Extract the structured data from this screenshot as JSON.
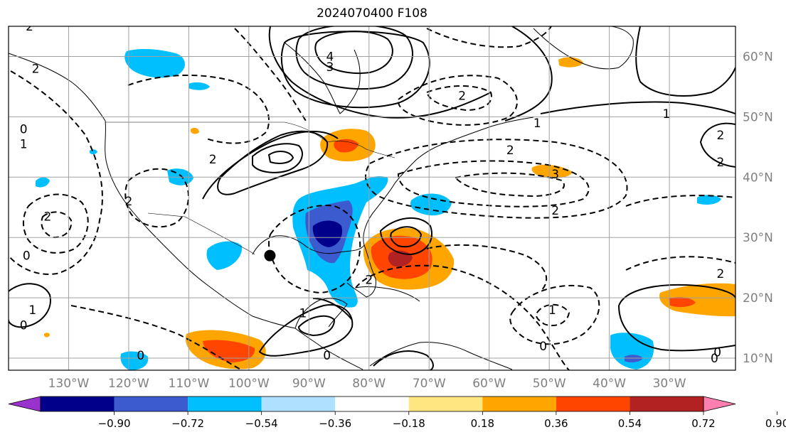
{
  "title": "2024070400 F108",
  "map": {
    "lon_range": [
      -140,
      -19
    ],
    "lat_range": [
      8,
      65
    ],
    "lon_ticks": [
      {
        "value": -130,
        "label": "130°W"
      },
      {
        "value": -120,
        "label": "120°W"
      },
      {
        "value": -110,
        "label": "110°W"
      },
      {
        "value": -100,
        "label": "100°W"
      },
      {
        "value": -90,
        "label": "90°W"
      },
      {
        "value": -80,
        "label": "80°W"
      },
      {
        "value": -70,
        "label": "70°W"
      },
      {
        "value": -60,
        "label": "60°W"
      },
      {
        "value": -50,
        "label": "50°W"
      },
      {
        "value": -40,
        "label": "40°W"
      },
      {
        "value": -30,
        "label": "30°W"
      }
    ],
    "lat_ticks": [
      {
        "value": 10,
        "label": "10°N"
      },
      {
        "value": 20,
        "label": "20°N"
      },
      {
        "value": 30,
        "label": "30°N"
      },
      {
        "value": 40,
        "label": "40°N"
      },
      {
        "value": 50,
        "label": "50°N"
      },
      {
        "value": 60,
        "label": "60°N"
      }
    ],
    "gridlines": true,
    "marker": {
      "lon": -96.5,
      "lat": 27,
      "color": "#000000"
    }
  },
  "contour_labels": [
    {
      "lon": -86.5,
      "lat": 60,
      "text": "4"
    },
    {
      "lon": -86.5,
      "lat": 58.3,
      "text": "3"
    },
    {
      "lon": -64.5,
      "lat": 53.5,
      "text": "2"
    },
    {
      "lon": -52,
      "lat": 49,
      "text": "1"
    },
    {
      "lon": -30.5,
      "lat": 50.5,
      "text": "1"
    },
    {
      "lon": -21.5,
      "lat": 47,
      "text": "2"
    },
    {
      "lon": -21.5,
      "lat": 42.5,
      "text": "2"
    },
    {
      "lon": -56.5,
      "lat": 44.5,
      "text": "2"
    },
    {
      "lon": -49,
      "lat": 40.5,
      "text": "3"
    },
    {
      "lon": -49,
      "lat": 34.5,
      "text": "2"
    },
    {
      "lon": -135.5,
      "lat": 58,
      "text": "2"
    },
    {
      "lon": -137.5,
      "lat": 48,
      "text": "0"
    },
    {
      "lon": -137.5,
      "lat": 45.5,
      "text": "1"
    },
    {
      "lon": -133.5,
      "lat": 33.5,
      "text": "2"
    },
    {
      "lon": -137,
      "lat": 27,
      "text": "0"
    },
    {
      "lon": -136,
      "lat": 18,
      "text": "1"
    },
    {
      "lon": -137.5,
      "lat": 15.5,
      "text": "0"
    },
    {
      "lon": -120,
      "lat": 36,
      "text": "2"
    },
    {
      "lon": -106,
      "lat": 43,
      "text": "2"
    },
    {
      "lon": -118,
      "lat": 10.5,
      "text": "0"
    },
    {
      "lon": -91,
      "lat": 17.5,
      "text": "1"
    },
    {
      "lon": -80,
      "lat": 23,
      "text": "2"
    },
    {
      "lon": -49.5,
      "lat": 18,
      "text": "1"
    },
    {
      "lon": -51,
      "lat": 12,
      "text": "0"
    },
    {
      "lon": -22,
      "lat": 11,
      "text": "0"
    },
    {
      "lon": -21.5,
      "lat": 24,
      "text": "2"
    },
    {
      "lon": -22.5,
      "lat": 10,
      "text": "0"
    },
    {
      "lon": -136.5,
      "lat": 65,
      "text": "2"
    },
    {
      "lon": -87,
      "lat": 10.5,
      "text": "0"
    }
  ],
  "colorbar": {
    "colors": [
      "#9932cc",
      "#00008b",
      "#3b5bcf",
      "#00bfff",
      "#b0e0ff",
      "#ffffff",
      "#ffe680",
      "#ffa500",
      "#ff4500",
      "#b22222",
      "#ff7fb0"
    ],
    "tick_labels": [
      "−0.90",
      "−0.72",
      "−0.54",
      "−0.36",
      "−0.18",
      "0.18",
      "0.36",
      "0.54",
      "0.72",
      "0.90"
    ]
  }
}
